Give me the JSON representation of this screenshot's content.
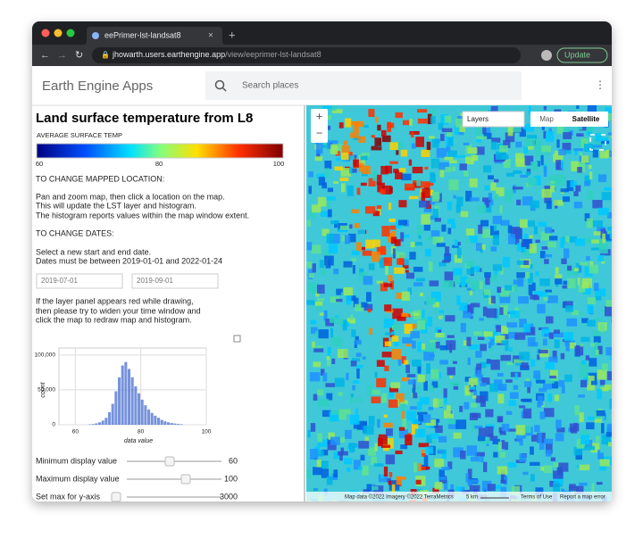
{
  "browser": {
    "tab_title": "eePrimer-lst-landsat8",
    "url_host": "jhowarth.users.earthengine.app",
    "url_path": "/view/eeprimer-lst-landsat8",
    "update_button": "Update"
  },
  "app_header": {
    "title": "Earth Engine Apps",
    "search_placeholder": "Search places"
  },
  "panel": {
    "title": "Land surface temperature from L8",
    "colorbar": {
      "title": "AVERAGE SURFACE TEMP",
      "lim": [
        60,
        100
      ],
      "ticks": [
        60,
        80,
        100
      ]
    },
    "location_heading": "TO CHANGE MAPPED LOCATION:",
    "location_text": [
      "Pan and zoom map, then click a location on the map.",
      "This will update the LST layer and histogram.",
      "The histogram reports values within the map window extent."
    ],
    "dates_heading": "TO CHANGE DATES:",
    "dates_text": [
      "Select a new start and end date.",
      "Dates must be between 2019-01-01 and 2022-01-24"
    ],
    "start_date": "2019-07-01",
    "end_date": "2019-09-01",
    "note_text": [
      "If the layer panel appears red while drawing,",
      "then please try to widen your time window and",
      "click the map to redraw map and histogram."
    ],
    "histogram": {
      "type": "histogram",
      "xlabel": "data value",
      "ylabel": "count",
      "color": "#4a6fd0",
      "grid": true,
      "xlim": [
        55,
        100
      ],
      "ylim": [
        0,
        110000
      ],
      "xticks": [
        60,
        80,
        100
      ],
      "yticks": [
        0,
        {
          "value": 50000,
          "label": "50,000"
        },
        {
          "value": 100000,
          "label": "100,000"
        }
      ],
      "bins": [
        64,
        65,
        66,
        67,
        68,
        69,
        70,
        71,
        72,
        73,
        74,
        75,
        76,
        77,
        78,
        79,
        80,
        81,
        82,
        83,
        84,
        85,
        86,
        87,
        88,
        89,
        90,
        91,
        92,
        93
      ],
      "counts": [
        500,
        1000,
        2000,
        3500,
        6000,
        10000,
        18000,
        30000,
        48000,
        68000,
        85000,
        90000,
        80000,
        68000,
        55000,
        45000,
        36000,
        28000,
        22000,
        17000,
        13000,
        10000,
        7000,
        5000,
        3500,
        2500,
        1800,
        1200,
        800
      ]
    },
    "sliders": [
      {
        "label": "Minimum display value",
        "value": 60
      },
      {
        "label": "Maximum display value",
        "value": 100
      },
      {
        "label": "Set max for y-axis",
        "value": 3000
      }
    ]
  },
  "map": {
    "layers": "Layers",
    "map_button": "Map",
    "satellite_button": "Satellite",
    "attribution": "Map data ©2022 Imagery ©2022 TerraMetrics",
    "scale": "5 km",
    "terms": "Terms of Use",
    "report": "Report a map error"
  }
}
